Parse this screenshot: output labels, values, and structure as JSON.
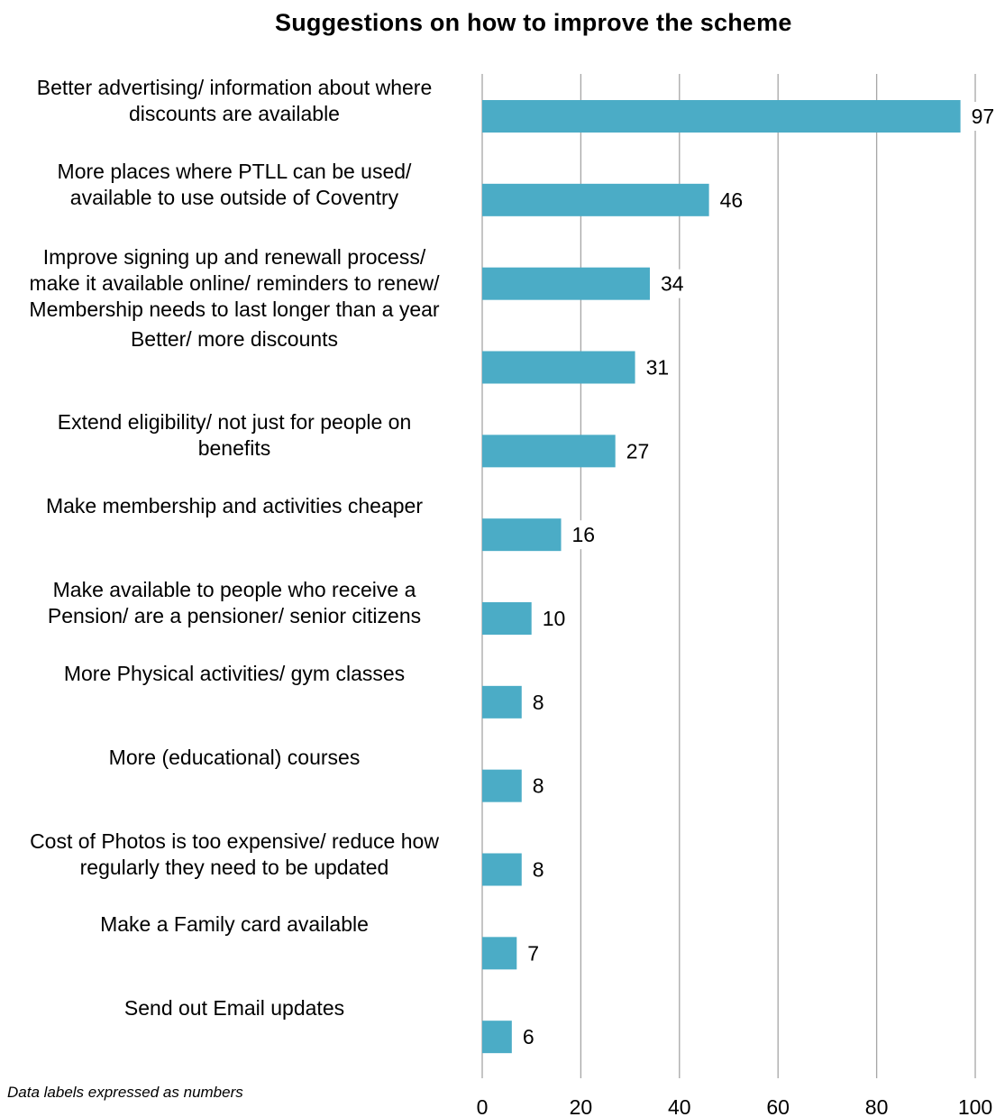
{
  "chart_data": {
    "type": "bar",
    "orientation": "horizontal",
    "title": "Suggestions on how to improve the scheme",
    "categories": [
      [
        "Better advertising/ information about where",
        "discounts are available"
      ],
      [
        "More places where PTLL can be used/",
        "available to use outside of Coventry"
      ],
      [
        "Improve signing up and renewall process/",
        "make it available online/ reminders to renew/",
        "Membership needs to last longer than a year"
      ],
      [
        "Better/ more discounts"
      ],
      [
        "Extend eligibility/ not just for people on",
        "benefits"
      ],
      [
        "Make membership and activities cheaper"
      ],
      [
        "Make available to people who receive a",
        "Pension/ are a pensioner/ senior citizens"
      ],
      [
        "More Physical activities/ gym classes"
      ],
      [
        "More (educational) courses"
      ],
      [
        "Cost of Photos is too expensive/ reduce how",
        "regularly they need to be updated"
      ],
      [
        "Make a Family card available"
      ],
      [
        "Send out Email updates"
      ]
    ],
    "values": [
      97,
      46,
      34,
      31,
      27,
      16,
      10,
      8,
      8,
      8,
      7,
      6
    ],
    "xlim": [
      0,
      100
    ],
    "xticks": [
      0,
      20,
      40,
      60,
      80,
      100
    ],
    "grid": true,
    "bar_color": "#4bacc6",
    "grid_color": "#a6a6a6"
  },
  "footnote": "Data labels expressed as numbers"
}
